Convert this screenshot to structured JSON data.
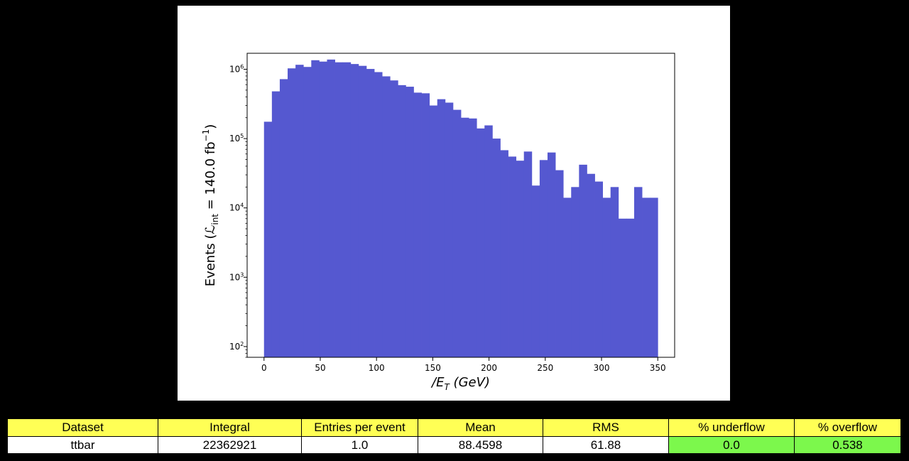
{
  "chart_data": {
    "type": "bar",
    "ylabel": "Events (ℒint = 140.0 fb⁻¹)",
    "ylabel_parts": {
      "prefix": "Events (",
      "script_l": "ℒ",
      "sub": "int",
      "mid": " = 140.0 fb",
      "sup": "−1",
      "suffix": ")"
    },
    "xlabel": "/E_T (GeV)",
    "xlabel_parts": {
      "main": "/E",
      "sub": "T",
      "unit": " (GeV)"
    },
    "xlim": [
      -15,
      365
    ],
    "ylim": [
      70,
      1700000
    ],
    "y_scale": "log",
    "grid": false,
    "bar_color": "#5558d0",
    "bin_width": 7,
    "x_ticks": [
      0,
      50,
      100,
      150,
      200,
      250,
      300,
      350
    ],
    "y_ticks": [
      {
        "value": 100,
        "base": "10",
        "exp": "2"
      },
      {
        "value": 1000,
        "base": "10",
        "exp": "3"
      },
      {
        "value": 10000,
        "base": "10",
        "exp": "4"
      },
      {
        "value": 100000,
        "base": "10",
        "exp": "5"
      },
      {
        "value": 1000000,
        "base": "10",
        "exp": "6"
      }
    ],
    "bin_edges": [
      0,
      7,
      14,
      21,
      28,
      35,
      42,
      49,
      56,
      63,
      70,
      77,
      84,
      91,
      98,
      105,
      112,
      119,
      126,
      133,
      140,
      147,
      154,
      161,
      168,
      175,
      182,
      189,
      196,
      203,
      210,
      217,
      224,
      231,
      238,
      245,
      252,
      259,
      266,
      273,
      280,
      287,
      294,
      301,
      308,
      315,
      322,
      329,
      336,
      343,
      350
    ],
    "values": [
      175000,
      480000,
      720000,
      1030000,
      1160000,
      1080000,
      1350000,
      1290000,
      1380000,
      1260000,
      1260000,
      1190000,
      1120000,
      1010000,
      910000,
      790000,
      690000,
      590000,
      560000,
      460000,
      450000,
      300000,
      370000,
      330000,
      260000,
      200000,
      195000,
      140000,
      155000,
      100000,
      68000,
      55000,
      48000,
      65000,
      21000,
      49000,
      63000,
      35000,
      14000,
      20000,
      42000,
      31000,
      24000,
      14000,
      20000,
      7000,
      7000,
      20000,
      14000,
      14000
    ]
  },
  "stats_table": {
    "headers": [
      "Dataset",
      "Integral",
      "Entries per event",
      "Mean",
      "RMS",
      "% underflow",
      "% overflow"
    ],
    "row": [
      "ttbar",
      "22362921",
      "1.0",
      "88.4598",
      "61.88",
      "0.0",
      "0.538"
    ],
    "colors": {
      "header": "#ffff55",
      "good": "#7cf84c"
    }
  }
}
